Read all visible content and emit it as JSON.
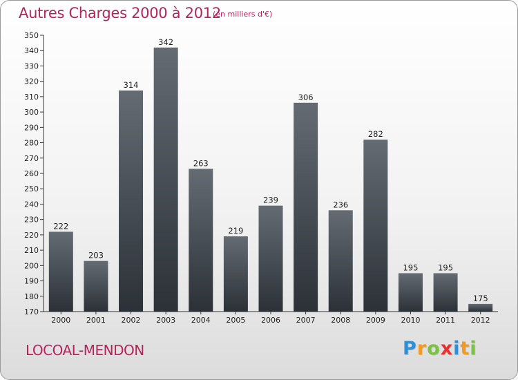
{
  "header": {
    "title": "Autres Charges 2000 à 2012",
    "subtitle": "(en milliers d'€)"
  },
  "footer": {
    "commune": "LOCOAL-MENDON",
    "brand_letters": [
      {
        "ch": "P",
        "color": "#2e8fd6"
      },
      {
        "ch": "r",
        "color": "#f29a1e"
      },
      {
        "ch": "o",
        "color": "#7cc242"
      },
      {
        "ch": "x",
        "color": "#e8302e"
      },
      {
        "ch": "i",
        "color": "#2e8fd6"
      },
      {
        "ch": "t",
        "color": "#f29a1e"
      },
      {
        "ch": "i",
        "color": "#7cc242"
      }
    ]
  },
  "chart_data": {
    "type": "bar",
    "categories": [
      "2000",
      "2001",
      "2002",
      "2003",
      "2004",
      "2005",
      "2006",
      "2007",
      "2008",
      "2009",
      "2010",
      "2011",
      "2012"
    ],
    "values": [
      222,
      203,
      314,
      342,
      263,
      219,
      239,
      306,
      236,
      282,
      195,
      195,
      175
    ],
    "ylim": [
      170,
      350
    ],
    "yticks": [
      170,
      180,
      190,
      200,
      210,
      220,
      230,
      240,
      250,
      260,
      270,
      280,
      290,
      300,
      310,
      320,
      330,
      340,
      350
    ],
    "grid": false,
    "legend": "none",
    "bar_color_top": "#646b72",
    "bar_color_bottom": "#2b3137",
    "text_color": "#b5245a"
  }
}
